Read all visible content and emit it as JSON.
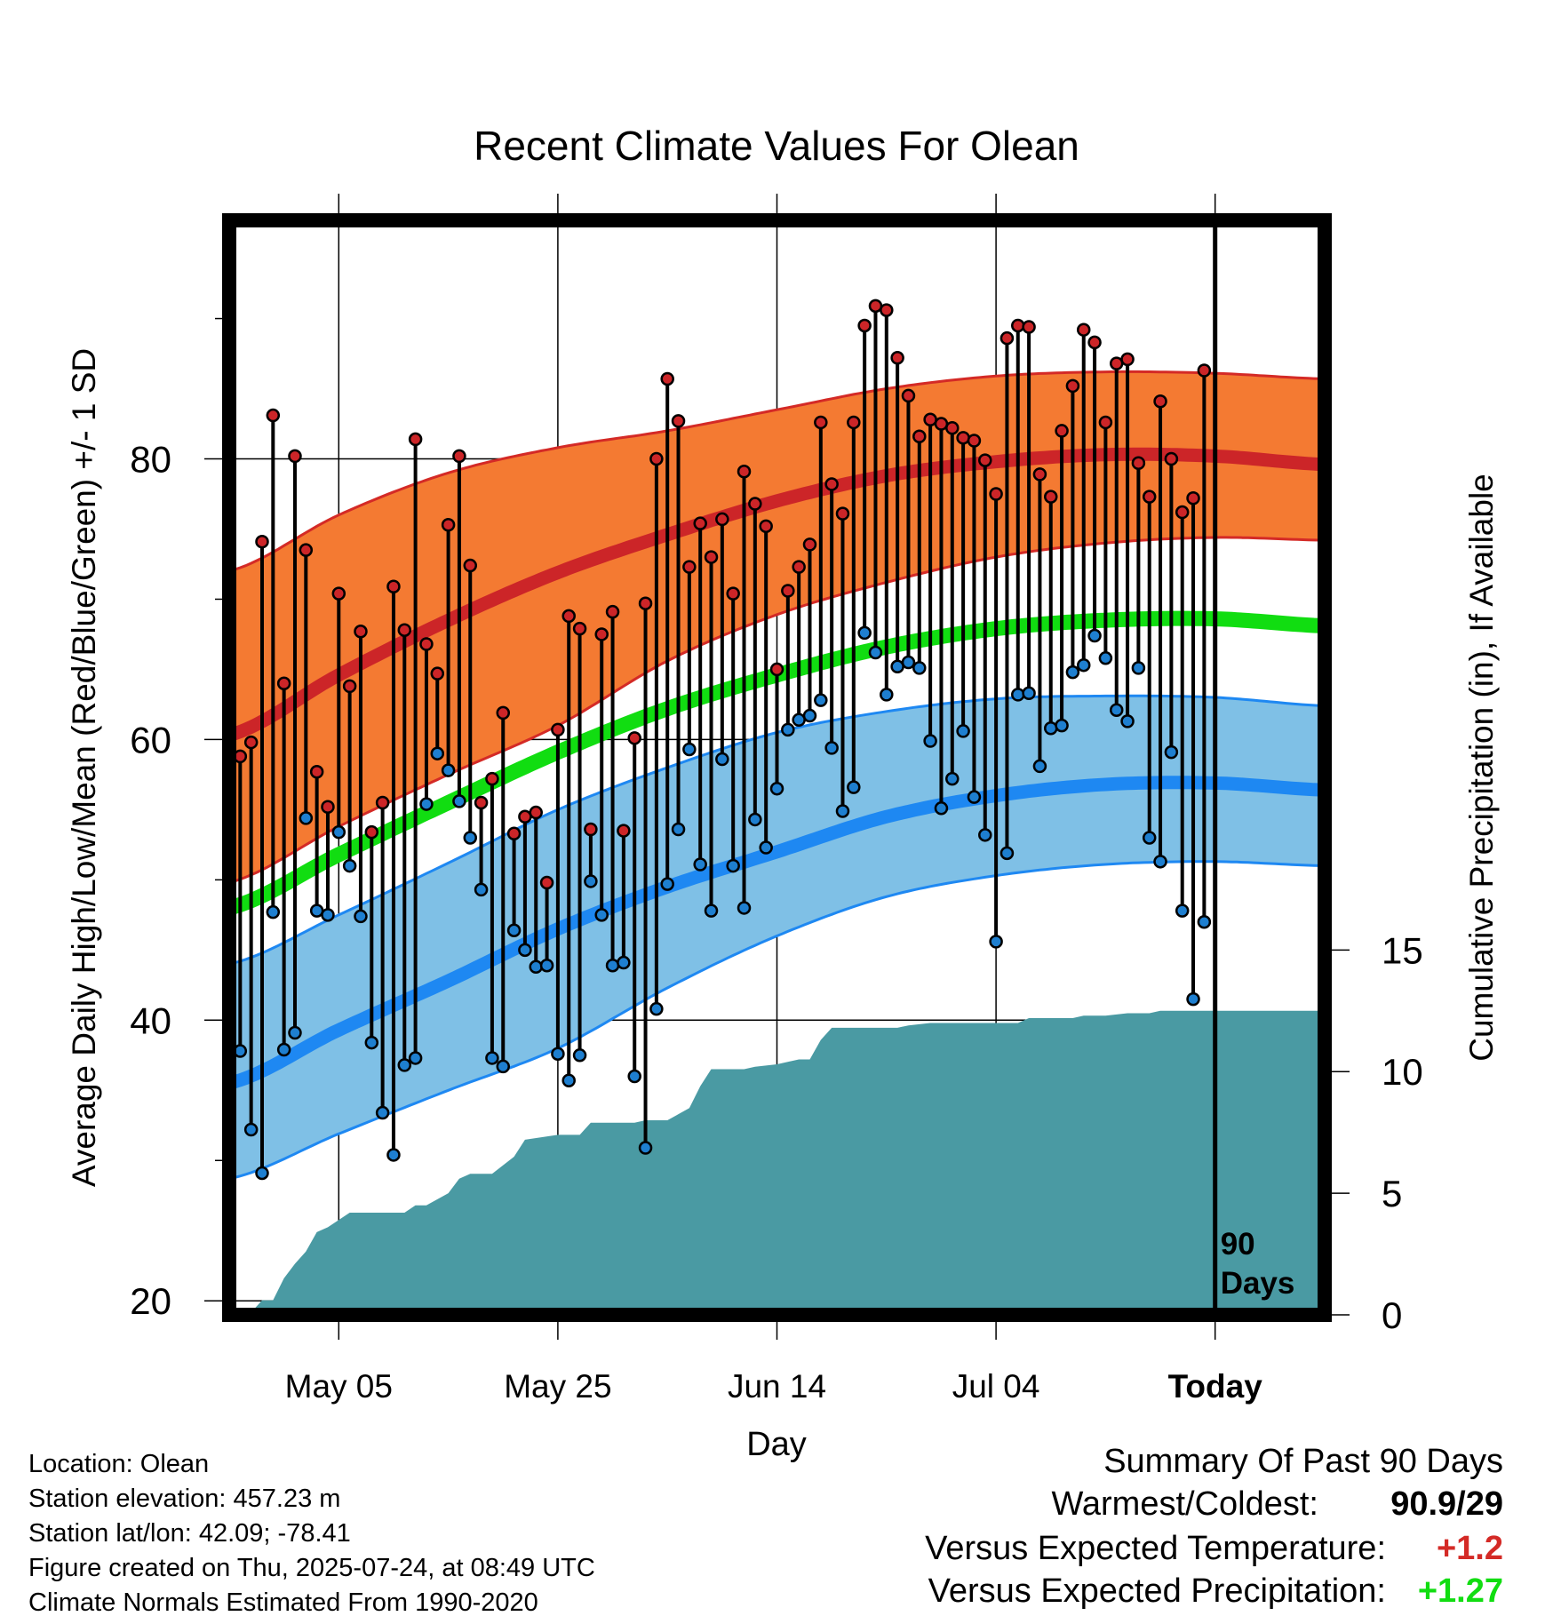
{
  "chart_data": {
    "type": "line",
    "title": "Recent Climate Values For Olean",
    "xlabel": "Day",
    "ylabel": "Average Daily High/Low/Mean (Red/Blue/Green) +/- 1 SD",
    "y2label": "Cumulative Precipitation (in), If Available",
    "ylim": [
      19,
      97
    ],
    "y2lim": [
      0,
      45
    ],
    "xlim": [
      0,
      100
    ],
    "x_ticks": [
      {
        "x": 10,
        "label": "May 05"
      },
      {
        "x": 30,
        "label": "May 25"
      },
      {
        "x": 50,
        "label": "Jun 14"
      },
      {
        "x": 70,
        "label": "Jul 04"
      },
      {
        "x": 90,
        "label": "Today"
      }
    ],
    "y_ticks": [
      20,
      40,
      60,
      80
    ],
    "y_minor_ticks": [
      30,
      50,
      70,
      90
    ],
    "y2_ticks": [
      0,
      5,
      10,
      15
    ],
    "today_x": 90,
    "today_label": [
      "90",
      "Days"
    ],
    "grid": true,
    "colors": {
      "high_band": "#F47A32",
      "high_edge": "#D42A26",
      "high_mean": "#CC2528",
      "low_band": "#7FC0E6",
      "low_edge": "#1E88F2",
      "low_mean": "#1E88F2",
      "mean": "#11DD11",
      "precip": "#4A9AA3",
      "high_dot": "#CC2528",
      "low_dot": "#1E7FD0",
      "positive_temp": "#D42A26",
      "positive_precip": "#11DD11"
    },
    "normal_high": {
      "x": [
        0,
        10,
        20,
        30,
        40,
        50,
        60,
        70,
        80,
        90,
        100
      ],
      "mean": [
        60.3,
        64.6,
        68.5,
        71.9,
        74.6,
        77.0,
        78.8,
        79.8,
        80.3,
        80.2,
        79.6
      ],
      "upper": [
        72.0,
        76.0,
        79.0,
        80.8,
        82.0,
        83.5,
        85.0,
        85.9,
        86.2,
        86.1,
        85.7
      ],
      "lower": [
        49.8,
        53.8,
        57.5,
        61.0,
        65.6,
        68.9,
        71.2,
        73.0,
        74.0,
        74.4,
        74.2
      ]
    },
    "normal_low": {
      "x": [
        0,
        10,
        20,
        30,
        40,
        50,
        60,
        70,
        80,
        90,
        100
      ],
      "mean": [
        35.5,
        39.3,
        42.8,
        46.5,
        49.5,
        52.0,
        54.5,
        56.0,
        56.8,
        56.9,
        56.4
      ],
      "upper": [
        44.0,
        47.5,
        51.2,
        55.0,
        58.0,
        60.5,
        62.0,
        62.9,
        63.1,
        63.0,
        62.4
      ],
      "lower": [
        28.7,
        31.9,
        35.0,
        38.0,
        42.3,
        46.0,
        48.8,
        50.3,
        51.1,
        51.3,
        51.0
      ]
    },
    "normal_mean": {
      "x": [
        0,
        10,
        20,
        30,
        40,
        50,
        60,
        70,
        80,
        90,
        100
      ],
      "mean": [
        48.0,
        51.8,
        55.5,
        59.1,
        62.2,
        64.6,
        66.6,
        67.9,
        68.5,
        68.6,
        68.1
      ]
    },
    "daily_high": [
      67.3,
      58.8,
      59.8,
      74.1,
      83.1,
      64.0,
      80.2,
      73.5,
      57.7,
      55.2,
      70.4,
      63.8,
      67.7,
      53.4,
      55.5,
      70.9,
      67.8,
      81.4,
      66.8,
      64.7,
      75.3,
      80.2,
      72.4,
      55.5,
      57.2,
      61.9,
      53.3,
      54.5,
      54.8,
      49.8,
      60.7,
      68.8,
      67.9,
      53.6,
      67.5,
      69.1,
      53.5,
      60.1,
      69.7,
      80.0,
      85.7,
      82.7,
      72.3,
      75.4,
      73.0,
      75.7,
      70.4,
      79.1,
      76.8,
      75.2,
      65.0,
      70.6,
      72.3,
      73.9,
      82.6,
      78.2,
      76.1,
      82.6,
      89.5,
      90.9,
      90.6,
      87.2,
      84.5,
      81.6,
      82.8,
      82.5,
      82.2,
      81.5,
      81.3,
      79.9,
      77.5,
      88.6,
      89.5,
      89.4,
      78.9,
      77.3,
      82.0,
      85.2,
      89.2,
      88.3,
      82.6,
      86.8,
      87.1,
      79.7,
      77.3,
      84.1,
      80.0,
      76.2,
      77.2,
      86.3
    ],
    "daily_low": [
      47.9,
      37.8,
      32.2,
      29.1,
      47.7,
      37.9,
      39.1,
      54.4,
      47.8,
      47.5,
      53.4,
      51.0,
      47.4,
      38.4,
      33.4,
      30.4,
      36.8,
      37.3,
      55.4,
      59.0,
      57.8,
      55.6,
      53.0,
      49.3,
      37.3,
      36.7,
      46.4,
      45.0,
      43.8,
      43.9,
      37.6,
      35.7,
      37.5,
      49.9,
      47.5,
      43.9,
      44.1,
      36.0,
      30.9,
      40.8,
      49.7,
      53.6,
      59.3,
      51.1,
      47.8,
      58.6,
      51.0,
      48.0,
      54.3,
      52.3,
      56.5,
      60.7,
      61.4,
      61.7,
      62.8,
      59.4,
      54.9,
      56.6,
      67.6,
      66.2,
      63.2,
      65.2,
      65.5,
      65.1,
      59.9,
      55.1,
      57.2,
      60.6,
      55.9,
      53.2,
      45.6,
      51.9,
      63.2,
      63.3,
      58.1,
      60.8,
      61.0,
      64.8,
      65.3,
      67.4,
      65.8,
      62.1,
      61.3,
      65.1,
      53.0,
      51.3,
      59.1,
      47.8,
      41.5,
      47.0
    ],
    "precip_cum": {
      "x": [
        0,
        2,
        3,
        4,
        5,
        6,
        7,
        8,
        9,
        11,
        16,
        17,
        18,
        20,
        21,
        22,
        24,
        26,
        27,
        30,
        32,
        33,
        37,
        38,
        40,
        42,
        43,
        44,
        47,
        48,
        50,
        52,
        53,
        54,
        55,
        58,
        60,
        61,
        62,
        64,
        70,
        71,
        72,
        73,
        77,
        78,
        80,
        82,
        84,
        85,
        90,
        100
      ],
      "values": [
        0.0,
        0.1,
        0.6,
        0.6,
        1.5,
        2.1,
        2.6,
        3.4,
        3.6,
        4.2,
        4.2,
        4.5,
        4.5,
        5.0,
        5.6,
        5.8,
        5.8,
        6.5,
        7.2,
        7.4,
        7.4,
        7.9,
        7.9,
        8.0,
        8.0,
        8.5,
        9.4,
        10.1,
        10.1,
        10.2,
        10.3,
        10.5,
        10.5,
        11.3,
        11.8,
        11.8,
        11.8,
        11.8,
        11.9,
        12.0,
        12.0,
        12.0,
        12.0,
        12.2,
        12.2,
        12.3,
        12.3,
        12.4,
        12.4,
        12.5,
        12.5,
        12.5
      ]
    }
  },
  "info": {
    "location": "Location: Olean",
    "elevation": "Station elevation: 457.23 m",
    "latlon": "Station lat/lon: 42.09; -78.41",
    "created": "Figure created on Thu, 2025-07-24, at 08:49 UTC",
    "normals": "Climate Normals Estimated From 1990-2020"
  },
  "summary": {
    "title": "Summary Of Past 90 Days",
    "warmest_label": "Warmest/Coldest:",
    "warmest_value": "90.9/29",
    "temp_label": "Versus Expected Temperature:",
    "temp_value": "+1.2",
    "precip_label": "Versus Expected Precipitation:",
    "precip_value": "+1.27"
  }
}
